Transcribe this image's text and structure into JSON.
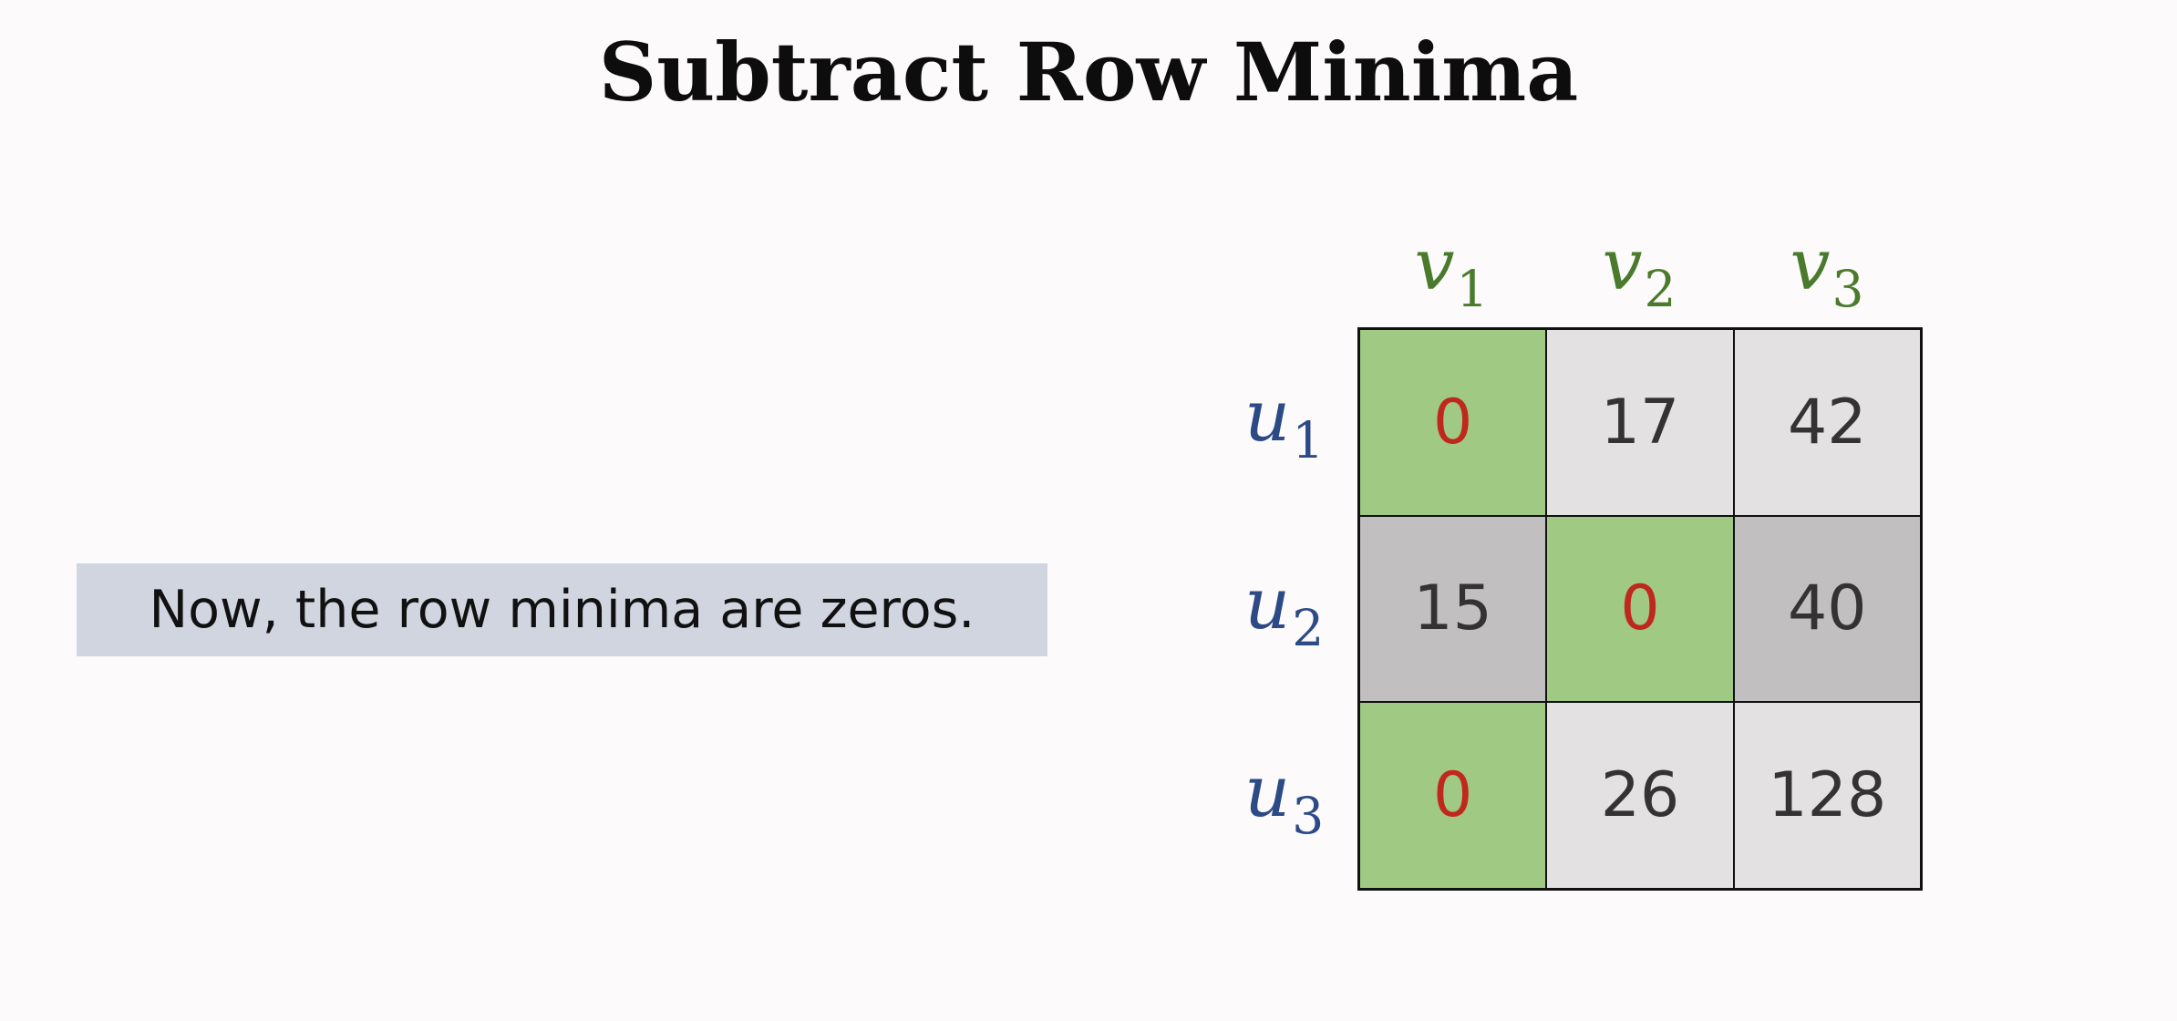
{
  "title": "Subtract Row Minima",
  "note": "Now, the row minima are zeros.",
  "columns": [
    {
      "var": "v",
      "sub": "1"
    },
    {
      "var": "v",
      "sub": "2"
    },
    {
      "var": "v",
      "sub": "3"
    }
  ],
  "rows": [
    {
      "var": "u",
      "sub": "1"
    },
    {
      "var": "u",
      "sub": "2"
    },
    {
      "var": "u",
      "sub": "3"
    }
  ],
  "matrix": [
    [
      "0",
      "17",
      "42"
    ],
    [
      "15",
      "0",
      "40"
    ],
    [
      "0",
      "26",
      "128"
    ]
  ],
  "highlighted_cells": [
    [
      0,
      0
    ],
    [
      1,
      1
    ],
    [
      2,
      0
    ]
  ],
  "colors": {
    "column_labels": "#4a7a2c",
    "row_labels": "#2c4a86",
    "highlight": "#a0c983",
    "zero_text": "#c0281d",
    "cell_light": "#e3e1e2",
    "cell_dark": "#c1bfc0",
    "note_background": "#d1d5e0"
  }
}
